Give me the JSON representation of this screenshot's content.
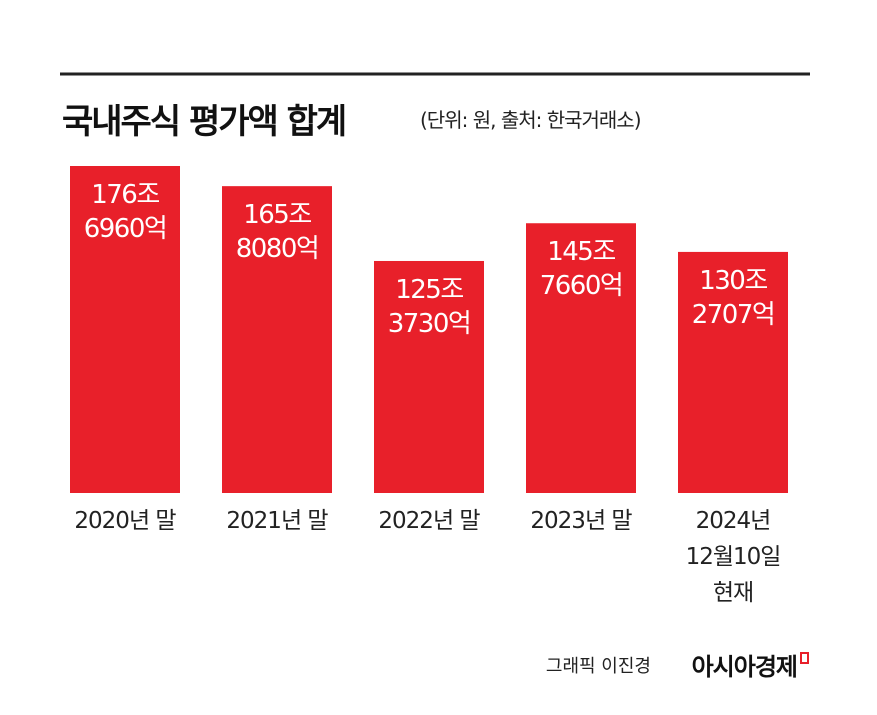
{
  "chart_data": {
    "type": "bar",
    "title": "국내주식 평가액 합계",
    "subtitle": "(단위: 원, 출처: 한국거래소)",
    "categories": [
      "2020년 말",
      "2021년 말",
      "2022년 말",
      "2023년 말",
      "2024년\n12월10일\n현재"
    ],
    "values": [
      1766960,
      1658080,
      1253730,
      1457660,
      1302707
    ],
    "value_labels": [
      "176조\n6960억",
      "165조\n8080억",
      "125조\n3730억",
      "145조\n7660억",
      "130조\n2707억"
    ],
    "color": "#e8202a",
    "credit": "그래픽 이진경",
    "brand": "아시아경제"
  }
}
